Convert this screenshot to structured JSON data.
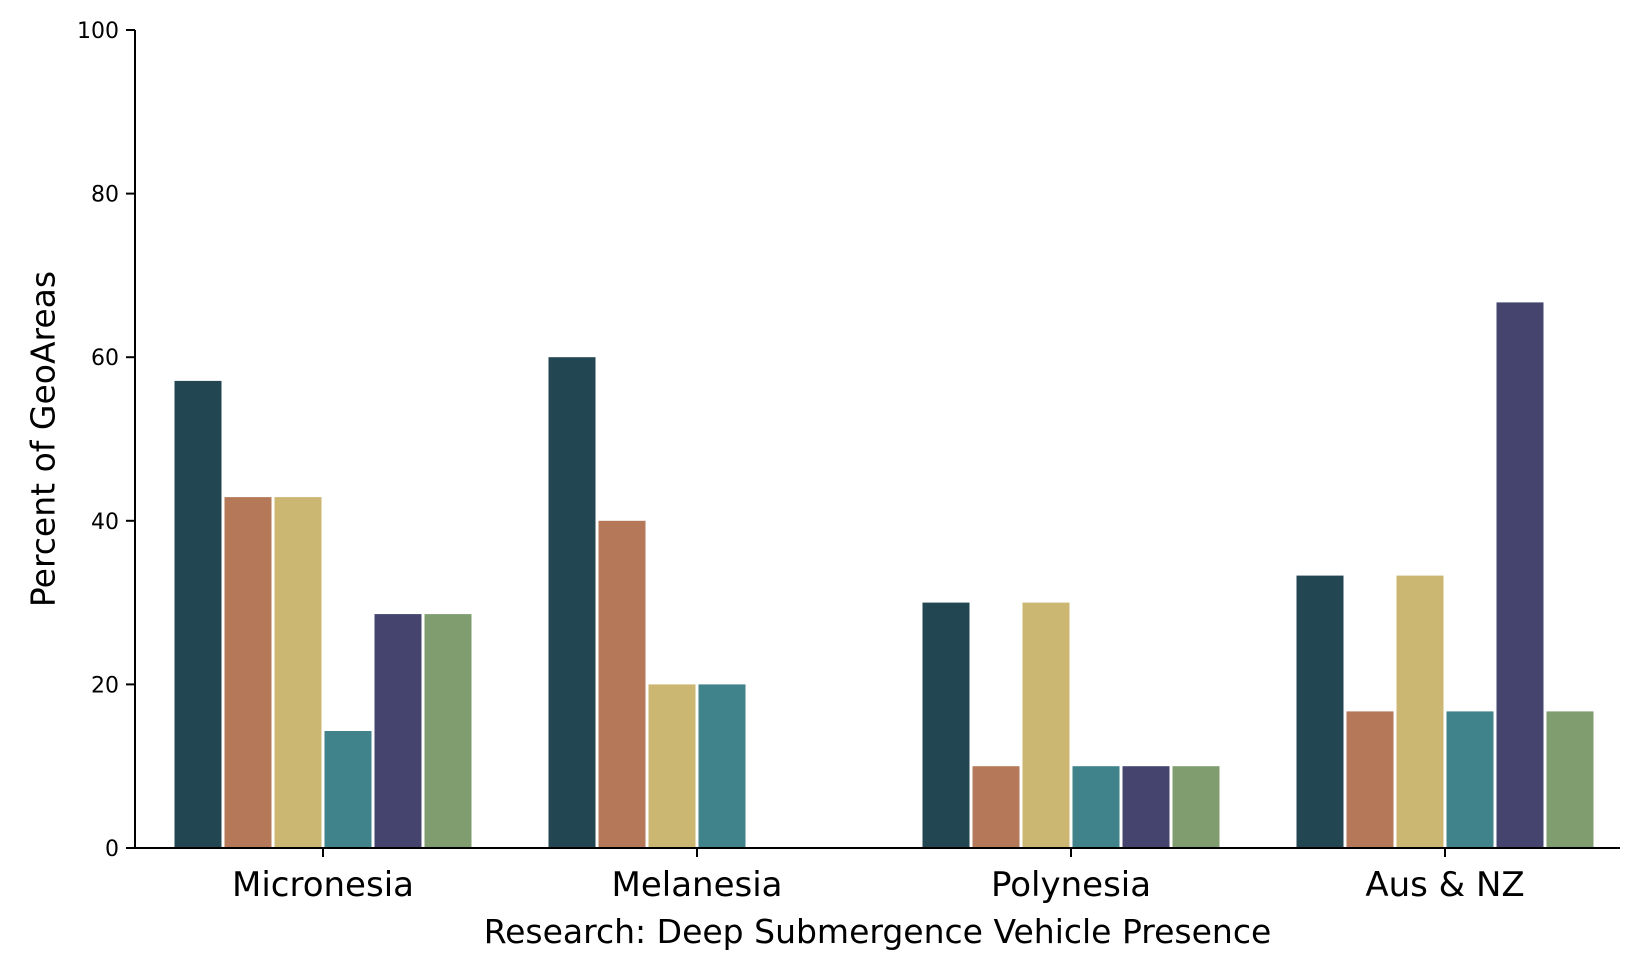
{
  "chart_data": {
    "type": "bar",
    "title": "",
    "xlabel": "Research: Deep Submergence Vehicle Presence",
    "ylabel": "Percent of GeoAreas",
    "ylim": [
      0,
      100
    ],
    "yticks": [
      0,
      20,
      40,
      60,
      80,
      100
    ],
    "grid": false,
    "legend": "none",
    "categories": [
      "Micronesia",
      "Melanesia",
      "Polynesia",
      "Aus & NZ"
    ],
    "series": [
      {
        "color": "#224652",
        "values": [
          57.1,
          60.0,
          30.0,
          33.3
        ]
      },
      {
        "color": "#B5795A",
        "values": [
          42.9,
          40.0,
          10.0,
          16.7
        ]
      },
      {
        "color": "#CCB772",
        "values": [
          42.9,
          20.0,
          30.0,
          33.3
        ]
      },
      {
        "color": "#41838A",
        "values": [
          14.3,
          20.0,
          10.0,
          16.7
        ]
      },
      {
        "color": "#44446F",
        "values": [
          28.6,
          0,
          10.0,
          66.7
        ]
      },
      {
        "color": "#809D70",
        "values": [
          28.6,
          0,
          10.0,
          16.7
        ]
      }
    ]
  }
}
